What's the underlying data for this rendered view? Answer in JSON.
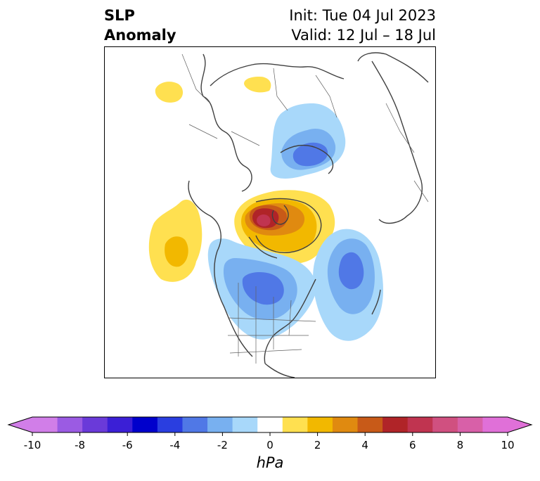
{
  "title": {
    "variable_line1": "SLP",
    "variable_line2": "Anomaly",
    "init_line": "Init: Tue 04 Jul 2023",
    "valid_line": "Valid: 12 Jul – 18 Jul"
  },
  "colorbar": {
    "units": "hPa",
    "tick_labels": [
      "-10",
      "-8",
      "-6",
      "-4",
      "-2",
      "0",
      "2",
      "4",
      "6",
      "8",
      "10"
    ],
    "tick_values": [
      -10,
      -8,
      -6,
      -4,
      -2,
      0,
      2,
      4,
      6,
      8,
      10
    ],
    "extend": "both",
    "colors": [
      "#d17ee8",
      "#9b5be3",
      "#6a3ad9",
      "#3b1fd6",
      "#0000cc",
      "#2a3ee0",
      "#5078e6",
      "#78b0f0",
      "#a8d8fa",
      "#ffffff",
      "#ffe050",
      "#f2b800",
      "#e08a10",
      "#c85a18",
      "#b02428",
      "#c03450",
      "#d05080",
      "#d860a8",
      "#e070d8"
    ],
    "under_color": "#d17ee8",
    "over_color": "#e070d8"
  },
  "map": {
    "projection": "north-polar stereographic",
    "colors": {
      "pos1": "#ffe050",
      "pos2": "#f2b800",
      "pos3": "#e08a10",
      "pos4": "#c85a18",
      "pos5": "#b02428",
      "pos6": "#c03450",
      "neg1": "#a8d8fa",
      "neg2": "#78b0f0",
      "neg3": "#5078e6",
      "neg4": "#2a3ee0",
      "coast": "#404040",
      "border": "#606060"
    }
  }
}
